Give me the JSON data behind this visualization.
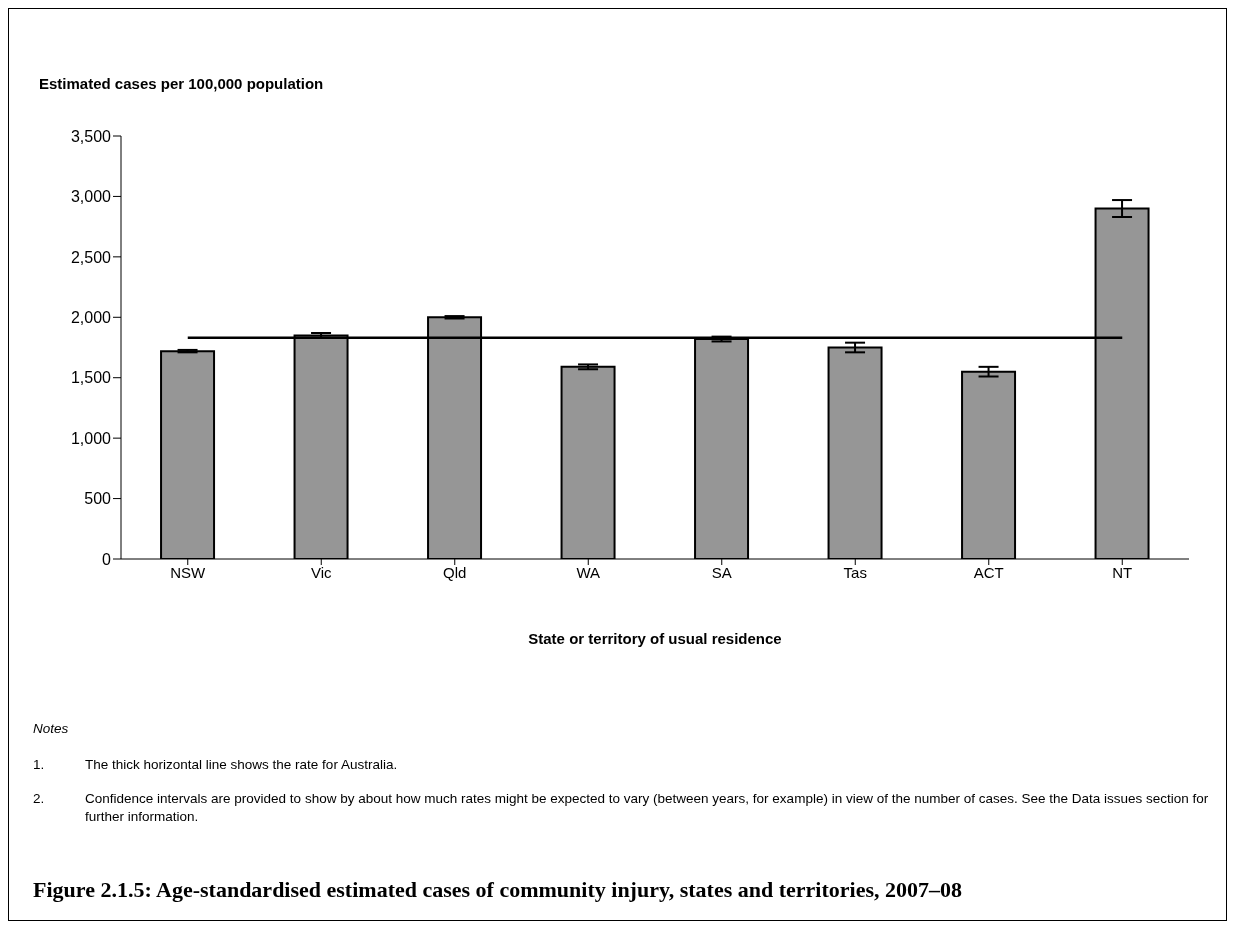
{
  "chart_data": {
    "type": "bar",
    "title": "Figure 2.1.5: Age-standardised estimated cases of community injury, states and territories, 2007–08",
    "ylabel": "Estimated cases per 100,000 population",
    "xlabel": "State or territory of usual residence",
    "categories": [
      "NSW",
      "Vic",
      "Qld",
      "WA",
      "SA",
      "Tas",
      "ACT",
      "NT"
    ],
    "values": [
      1720,
      1850,
      2000,
      1590,
      1820,
      1750,
      1550,
      2900
    ],
    "errors": [
      10,
      20,
      10,
      20,
      20,
      40,
      40,
      70
    ],
    "color": "#969696",
    "ylim": [
      0,
      3500
    ],
    "yticks": [
      0,
      500,
      {
        "value": 1000,
        "label": "1,000"
      },
      {
        "value": 1500,
        "label": "1,500"
      },
      {
        "value": 2000,
        "label": "2,000"
      },
      {
        "value": 2500,
        "label": "2,500"
      },
      {
        "value": 3000,
        "label": "3,000"
      },
      {
        "value": 3500,
        "label": "3,500"
      }
    ],
    "ref_lines": [
      {
        "axis": "y",
        "value": 1830,
        "color": "#000000"
      }
    ],
    "annotations": [
      "Notes",
      "1.\tThe thick horizontal line shows the rate for Australia.",
      "2.\tConfidence intervals are provided to show by about how much rates might be expected to vary (between years, for example) in view of the number of cases. See the Data issues section for further information."
    ]
  }
}
